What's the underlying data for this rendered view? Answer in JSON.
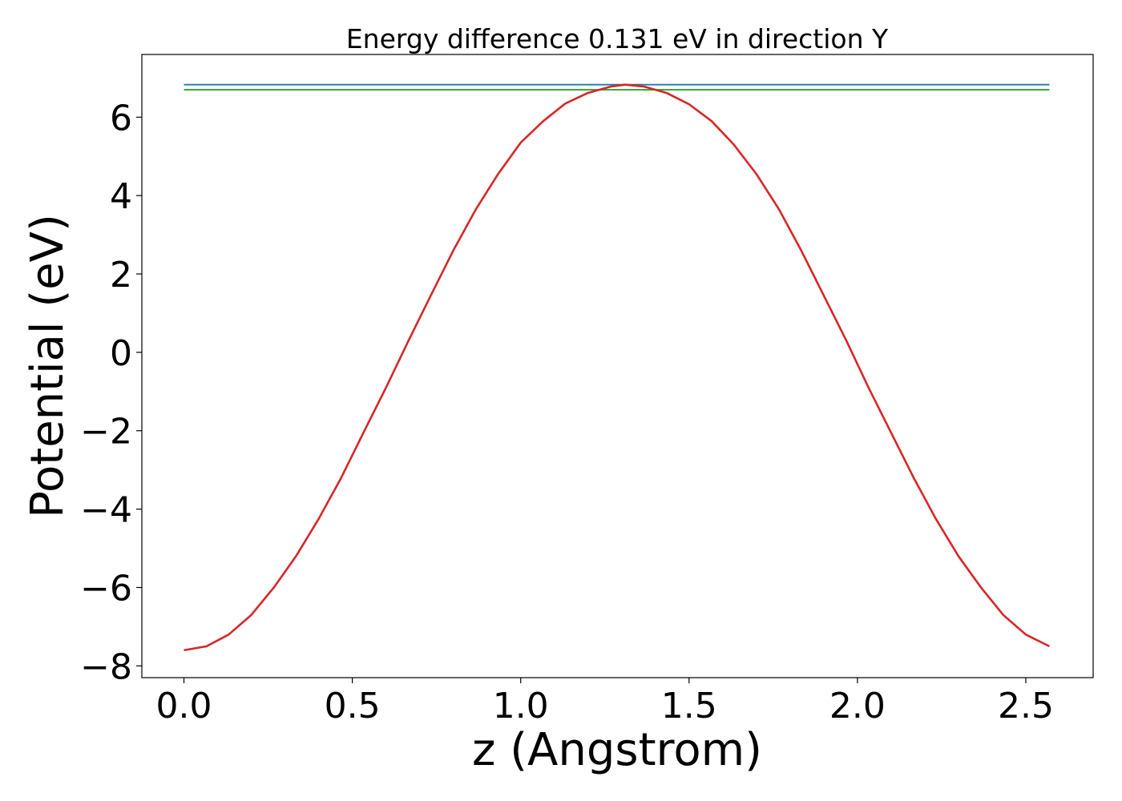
{
  "chart_data": {
    "type": "line",
    "title": "Energy difference 0.131 eV in direction Y",
    "xlabel": "z (Angstrom)",
    "ylabel": "Potential (eV)",
    "xlim": [
      -0.125,
      2.7
    ],
    "ylim": [
      -8.3,
      7.6
    ],
    "xticks": [
      0.0,
      0.5,
      1.0,
      1.5,
      2.0,
      2.5
    ],
    "xtick_labels": [
      "0.0",
      "0.5",
      "1.0",
      "1.5",
      "2.0",
      "2.5"
    ],
    "yticks": [
      -8,
      -6,
      -4,
      -2,
      0,
      2,
      4,
      6
    ],
    "ytick_labels": [
      "−8",
      "−6",
      "−4",
      "−2",
      "0",
      "2",
      "4",
      "6"
    ],
    "grid": false,
    "series": [
      {
        "color": "#1f77b4",
        "x": [
          0.0,
          2.57
        ],
        "y": [
          6.83,
          6.83
        ]
      },
      {
        "color": "#2ca02c",
        "x": [
          0.0,
          2.57
        ],
        "y": [
          6.7,
          6.7
        ]
      },
      {
        "color": "#d62728",
        "x": [
          0.0,
          0.067,
          0.133,
          0.2,
          0.267,
          0.333,
          0.4,
          0.467,
          0.533,
          0.6,
          0.667,
          0.733,
          0.8,
          0.867,
          0.933,
          1.0,
          1.067,
          1.133,
          1.2,
          1.267,
          1.31,
          1.367,
          1.433,
          1.5,
          1.567,
          1.633,
          1.7,
          1.767,
          1.833,
          1.9,
          1.967,
          2.033,
          2.1,
          2.167,
          2.233,
          2.3,
          2.367,
          2.433,
          2.5,
          2.57
        ],
        "y": [
          -7.6,
          -7.5,
          -7.2,
          -6.7,
          -6.0,
          -5.2,
          -4.25,
          -3.2,
          -2.05,
          -0.9,
          0.3,
          1.45,
          2.6,
          3.65,
          4.55,
          5.35,
          5.9,
          6.35,
          6.62,
          6.78,
          6.83,
          6.78,
          6.62,
          6.33,
          5.9,
          5.3,
          4.55,
          3.65,
          2.6,
          1.45,
          0.3,
          -0.9,
          -2.05,
          -3.2,
          -4.25,
          -5.2,
          -6.0,
          -6.7,
          -7.2,
          -7.5
        ]
      }
    ]
  }
}
